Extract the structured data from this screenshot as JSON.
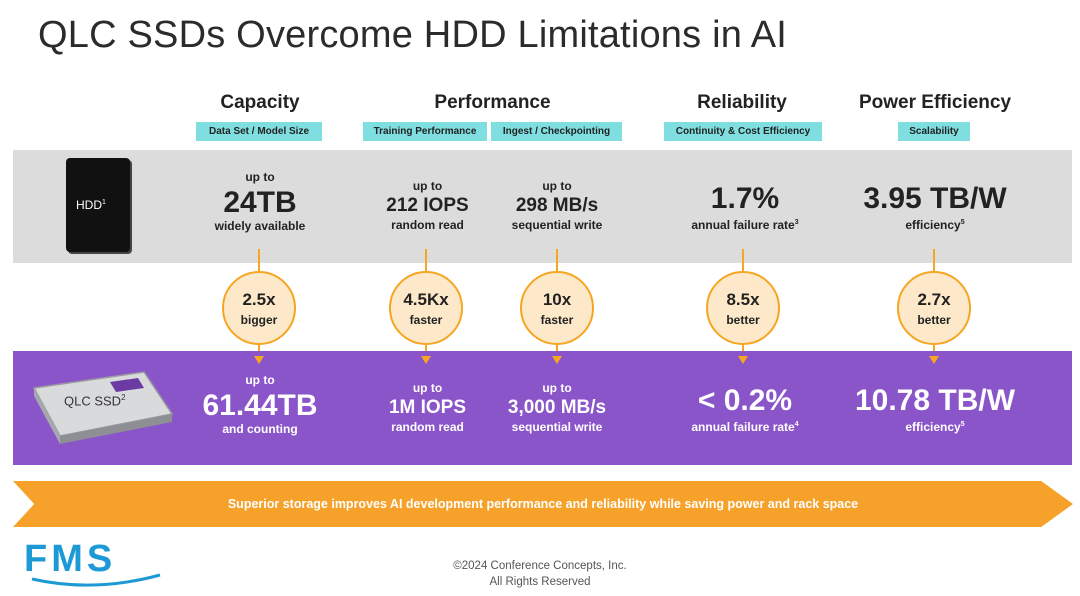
{
  "title": "QLC SSDs Overcome HDD Limitations in AI",
  "columns": {
    "capacity": {
      "heading": "Capacity",
      "sub": "Data Set / Model Size"
    },
    "performance": {
      "heading": "Performance",
      "sub1": "Training Performance",
      "sub2": "Ingest / Checkpointing"
    },
    "reliability": {
      "heading": "Reliability",
      "sub": "Continuity & Cost Efficiency"
    },
    "power": {
      "heading": "Power Efficiency",
      "sub": "Scalability"
    }
  },
  "hdd": {
    "label": "HDD",
    "label_sup": "1",
    "capacity": {
      "pre": "up to",
      "value": "24TB",
      "post": "widely available"
    },
    "training": {
      "pre": "up to",
      "value": "212 IOPS",
      "post": "random read"
    },
    "ingest": {
      "pre": "up to",
      "value": "298 MB/s",
      "post": "sequential write"
    },
    "reliability": {
      "value": "1.7%",
      "post": "annual failure rate",
      "sup": "3"
    },
    "power": {
      "value": "3.95 TB/W",
      "post": "efficiency",
      "sup": "5"
    }
  },
  "comparisons": [
    {
      "value": "2.5x",
      "label": "bigger"
    },
    {
      "value": "4.5Kx",
      "label": "faster"
    },
    {
      "value": "10x",
      "label": "faster"
    },
    {
      "value": "8.5x",
      "label": "better"
    },
    {
      "value": "2.7x",
      "label": "better"
    }
  ],
  "ssd": {
    "label": "QLC SSD",
    "label_sup": "2",
    "capacity": {
      "pre": "up to",
      "value": "61.44TB",
      "post": "and counting"
    },
    "training": {
      "pre": "up to",
      "value": "1M IOPS",
      "post": "random read"
    },
    "ingest": {
      "pre": "up to",
      "value": "3,000 MB/s",
      "post": "sequential write"
    },
    "reliability": {
      "value": "< 0.2%",
      "post": "annual failure rate",
      "sup": "4"
    },
    "power": {
      "value": "10.78 TB/W",
      "post": "efficiency",
      "sup": "5"
    }
  },
  "banner": "Superior storage improves AI development performance and reliability while saving power and rack space",
  "footer": {
    "line1": "©2024 Conference Concepts, Inc.",
    "line2": "All Rights Reserved"
  },
  "logo_text": "FMS",
  "colors": {
    "ssd_band": "#8a55c9",
    "hdd_band": "#dcdcdc",
    "accent": "#f5a623",
    "sub_label": "#7fdfe0"
  }
}
